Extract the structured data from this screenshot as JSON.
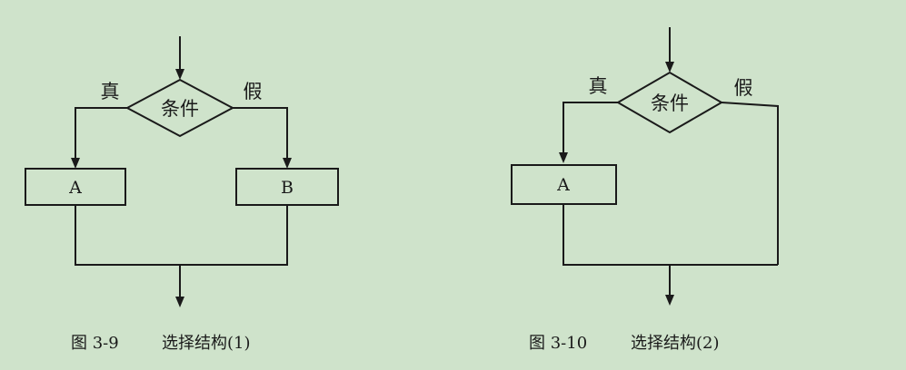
{
  "figure_1": {
    "condition": "条件",
    "true_label": "真",
    "false_label": "假",
    "box_a": "A",
    "box_b": "B",
    "caption_number": "图 3-9",
    "caption_title": "选择结构(1)"
  },
  "figure_2": {
    "condition": "条件",
    "true_label": "真",
    "false_label": "假",
    "box_a": "A",
    "caption_number": "图 3-10",
    "caption_title": "选择结构(2)"
  },
  "colors": {
    "background": "#cfe3cb",
    "stroke": "#1a1a1a"
  }
}
